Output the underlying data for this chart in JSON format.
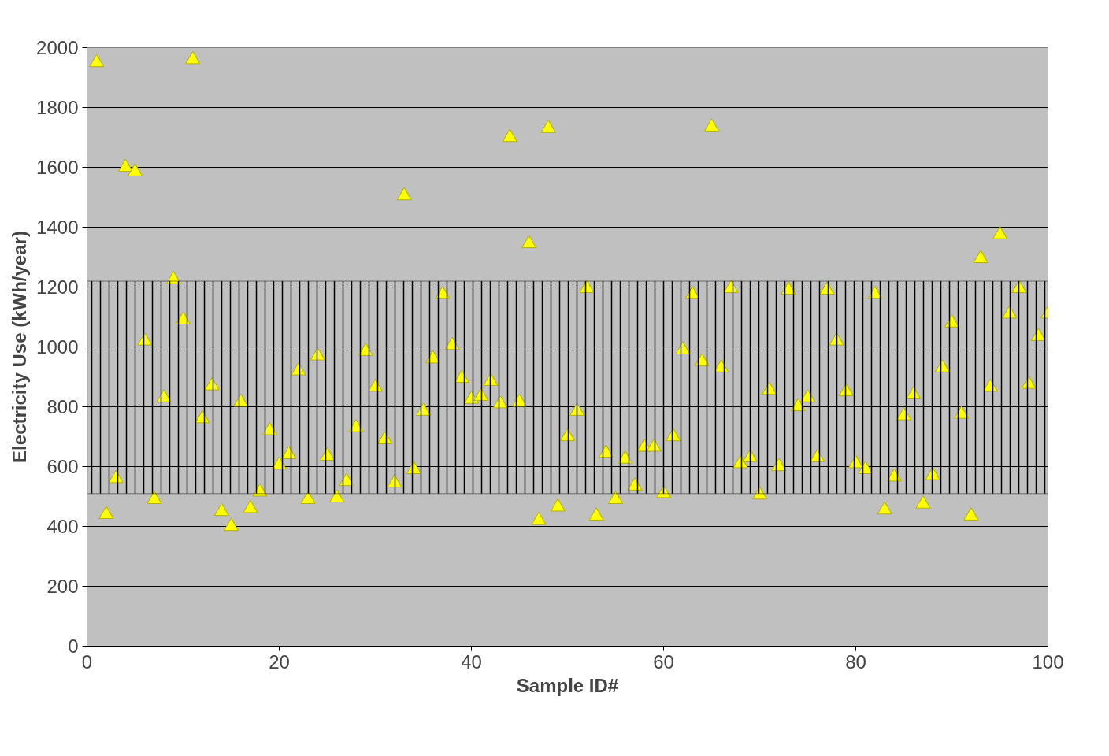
{
  "chart_data": {
    "type": "scatter",
    "xlabel": "Sample ID#",
    "ylabel": "Electricity Use (kWh/year)",
    "x": [
      1,
      2,
      3,
      4,
      5,
      6,
      7,
      8,
      9,
      10,
      11,
      12,
      13,
      14,
      15,
      16,
      17,
      18,
      19,
      20,
      21,
      22,
      23,
      24,
      25,
      26,
      27,
      28,
      29,
      30,
      31,
      32,
      33,
      34,
      35,
      36,
      37,
      38,
      39,
      40,
      41,
      42,
      43,
      44,
      45,
      46,
      47,
      48,
      49,
      50,
      51,
      52,
      53,
      54,
      55,
      56,
      57,
      58,
      59,
      60,
      61,
      62,
      63,
      64,
      65,
      66,
      67,
      68,
      69,
      70,
      71,
      72,
      73,
      74,
      75,
      76,
      77,
      78,
      79,
      80,
      81,
      82,
      83,
      84,
      85,
      86,
      87,
      88,
      89,
      90,
      91,
      92,
      93,
      94,
      95,
      96,
      97,
      98,
      99,
      100
    ],
    "series": [
      {
        "color": "#ffff00",
        "values": [
          1950,
          440,
          560,
          1600,
          1585,
          1020,
          490,
          830,
          1225,
          1090,
          1960,
          760,
          870,
          450,
          400,
          815,
          460,
          515,
          720,
          605,
          640,
          920,
          490,
          970,
          635,
          495,
          550,
          730,
          985,
          865,
          690,
          545,
          1505,
          590,
          785,
          960,
          1175,
          1005,
          895,
          825,
          835,
          885,
          810,
          1700,
          815,
          1345,
          420,
          1730,
          465,
          700,
          785,
          1195,
          435,
          645,
          490,
          625,
          535,
          665,
          665,
          510,
          700,
          990,
          1175,
          950,
          1735,
          930,
          1195,
          610,
          630,
          505,
          855,
          600,
          1190,
          800,
          830,
          630,
          1190,
          1020,
          850,
          610,
          590,
          1175,
          455,
          565,
          770,
          840,
          475,
          570,
          930,
          1080,
          775,
          435,
          1295,
          865,
          1375,
          1110,
          1195,
          875,
          1035,
          1110
        ]
      }
    ],
    "xlim": [
      0,
      100
    ],
    "ylim": [
      0,
      2000
    ],
    "xticks": [
      0,
      20,
      40,
      60,
      80,
      100
    ],
    "yticks": [
      0,
      200,
      400,
      600,
      800,
      1000,
      1200,
      1400,
      1600,
      1800,
      2000
    ],
    "bands": [
      {
        "axis": "y",
        "from": 510,
        "to": 1220,
        "color": "#000000"
      }
    ],
    "grid": "y",
    "marker": "triangle"
  }
}
